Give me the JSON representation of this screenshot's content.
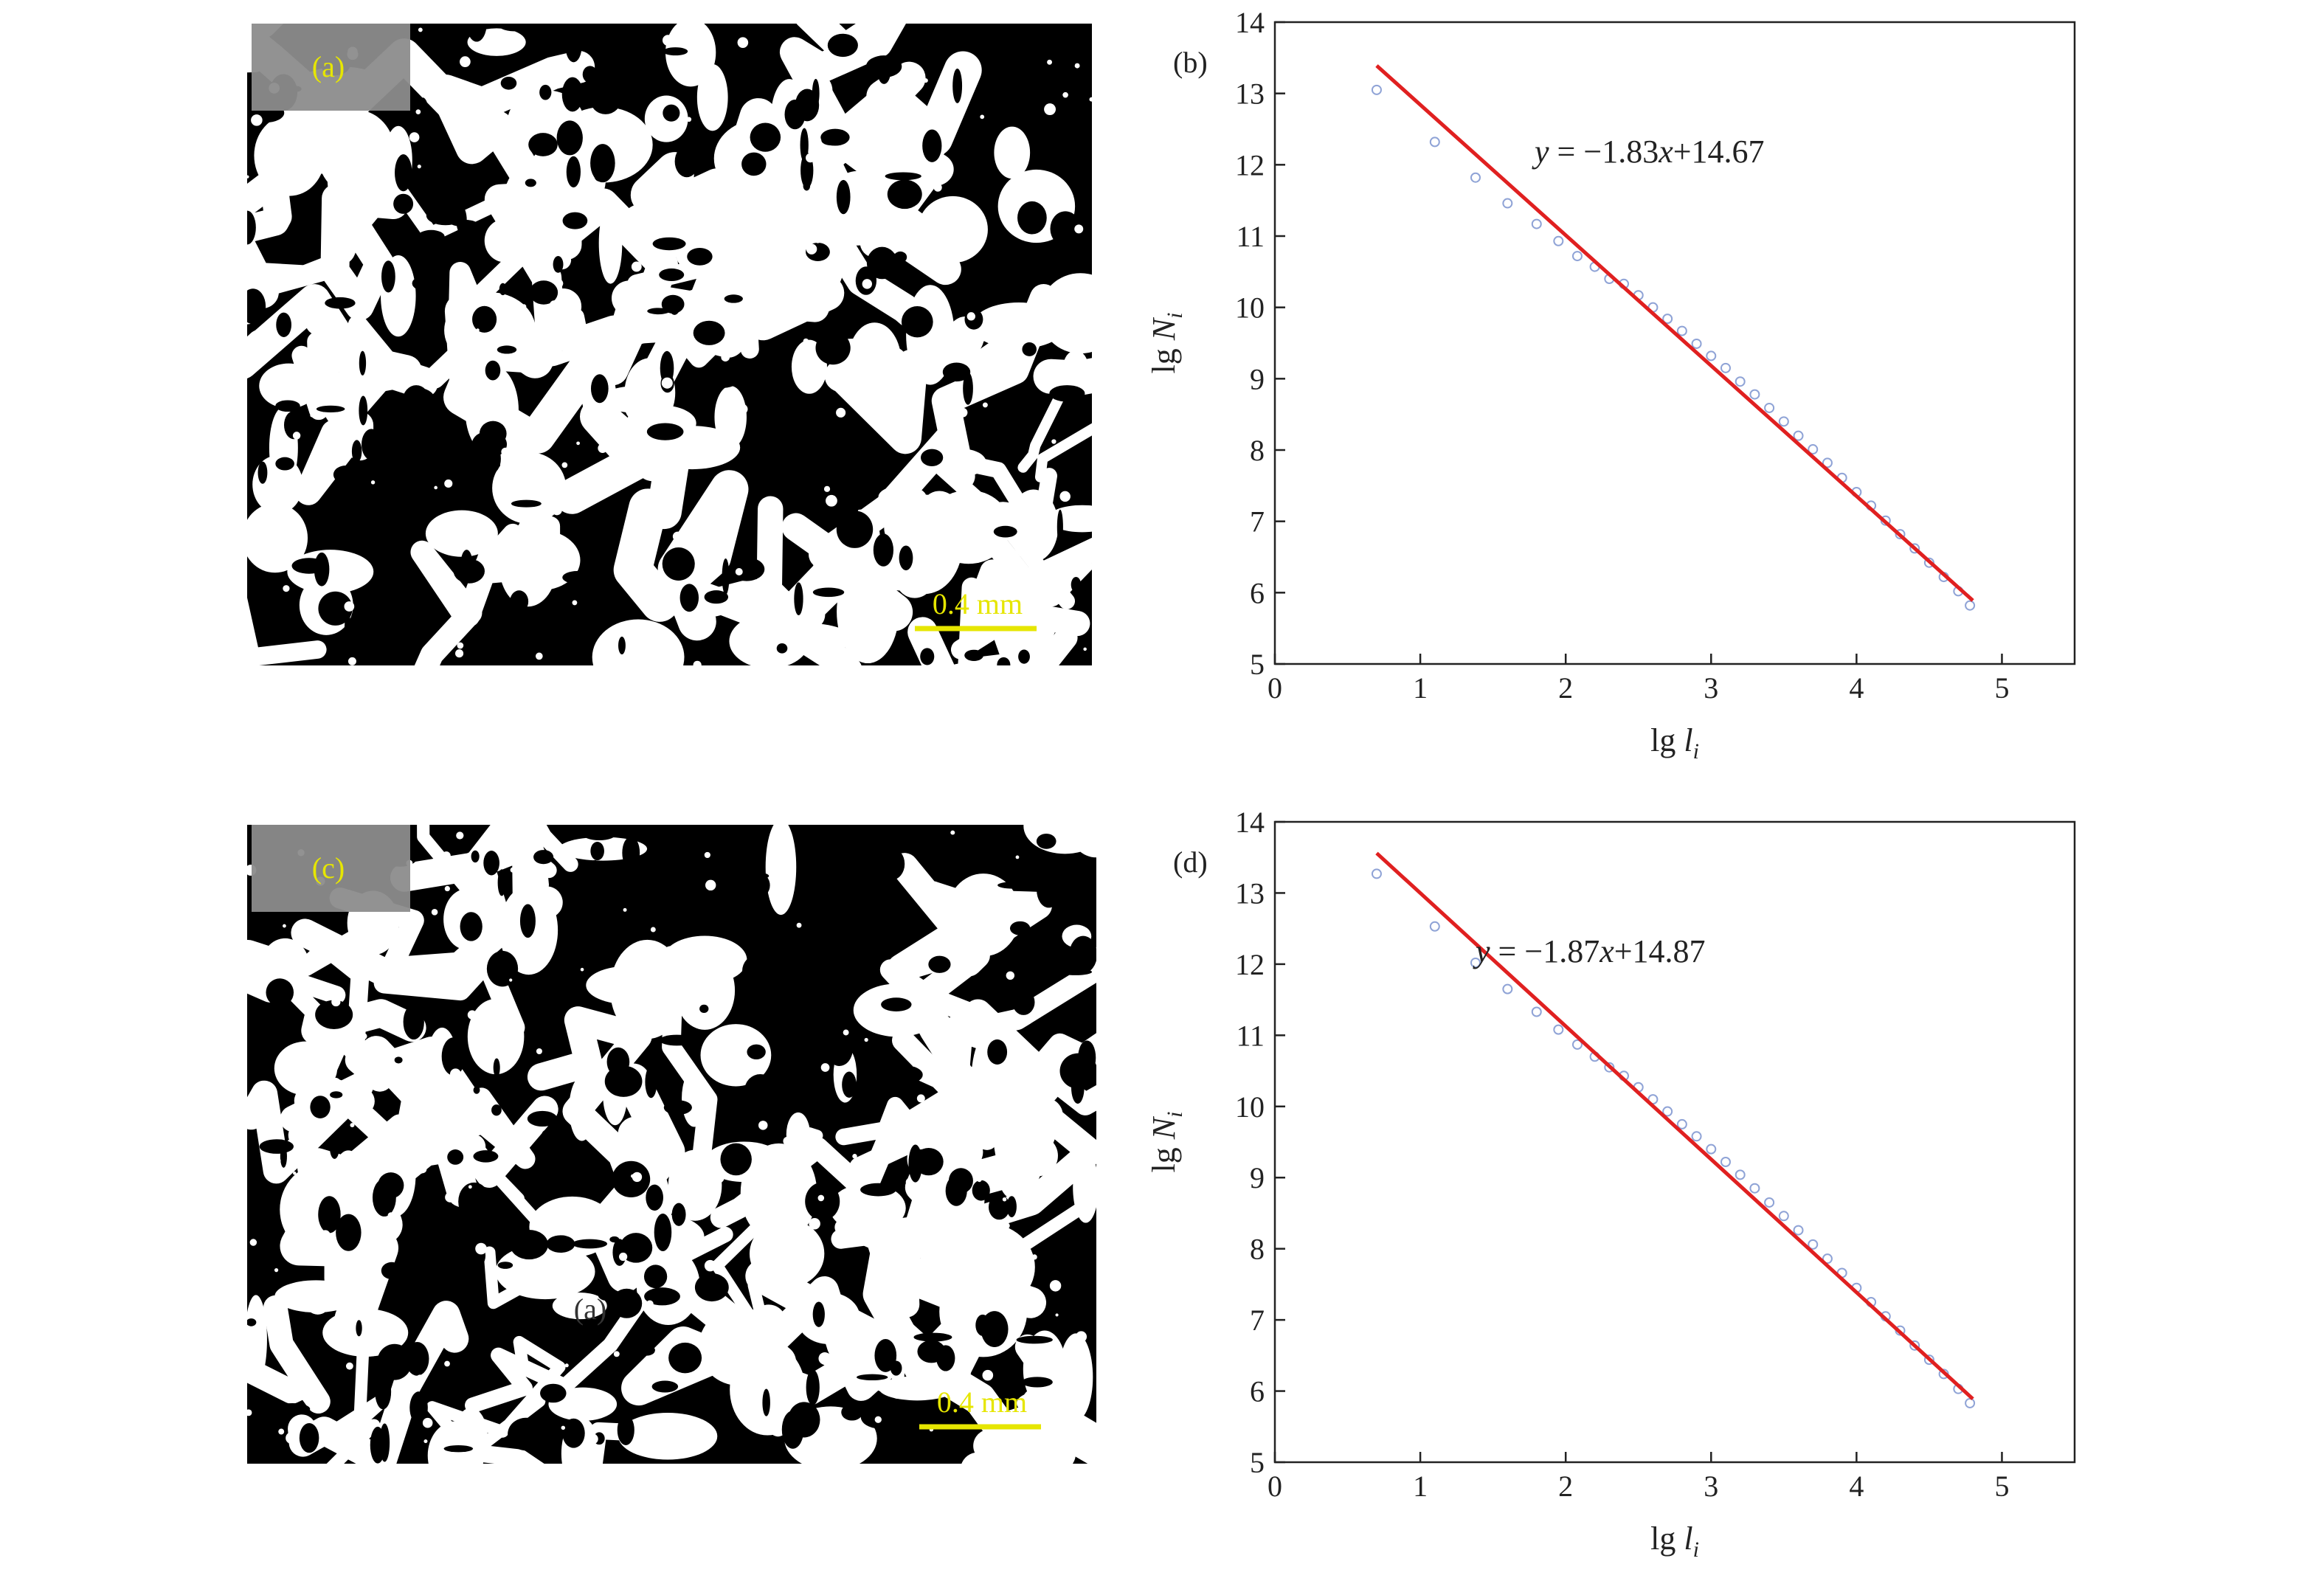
{
  "images": [
    {
      "label": "(a)",
      "scale_bar": "0.4 mm"
    },
    {
      "label": "(c)",
      "scale_bar": "0.4 mm",
      "ghost_label": "(a)"
    }
  ],
  "chart_data": [
    {
      "type": "scatter",
      "panel_label": "(b)",
      "annotation": "y = −1.83x+14.67",
      "xlabel": "lg l",
      "xlabel_sub": "i",
      "ylabel": "lg N",
      "ylabel_sub": "i",
      "xlim": [
        0,
        5.5
      ],
      "ylim": [
        5,
        14
      ],
      "xticks": [
        0,
        1,
        2,
        3,
        4,
        5
      ],
      "yticks": [
        5,
        6,
        7,
        8,
        9,
        10,
        11,
        12,
        13,
        14
      ],
      "series": [
        {
          "mode": "markers",
          "color": "#8fa3d6",
          "x": [
            0.7,
            1.1,
            1.38,
            1.6,
            1.8,
            1.95,
            2.08,
            2.2,
            2.3,
            2.4,
            2.5,
            2.6,
            2.7,
            2.8,
            2.9,
            3.0,
            3.1,
            3.2,
            3.3,
            3.4,
            3.5,
            3.6,
            3.7,
            3.8,
            3.9,
            4.0,
            4.1,
            4.2,
            4.3,
            4.4,
            4.5,
            4.6,
            4.7,
            4.78
          ],
          "values": [
            13.05,
            12.32,
            11.82,
            11.46,
            11.17,
            10.93,
            10.72,
            10.57,
            10.4,
            10.33,
            10.17,
            10.0,
            9.84,
            9.67,
            9.49,
            9.32,
            9.15,
            8.96,
            8.78,
            8.59,
            8.4,
            8.2,
            8.01,
            7.82,
            7.61,
            7.41,
            7.22,
            7.01,
            6.82,
            6.62,
            6.42,
            6.22,
            6.02,
            5.82
          ]
        },
        {
          "mode": "line",
          "color": "#e02020",
          "x": [
            0.7,
            4.8
          ],
          "values": [
            13.39,
            5.89
          ]
        }
      ]
    },
    {
      "type": "scatter",
      "panel_label": "(d)",
      "annotation": "y = −1.87x+14.87",
      "xlabel": "lg l",
      "xlabel_sub": "i",
      "ylabel": "lg N",
      "ylabel_sub": "i",
      "xlim": [
        0,
        5.5
      ],
      "ylim": [
        5,
        14
      ],
      "xticks": [
        0,
        1,
        2,
        3,
        4,
        5
      ],
      "yticks": [
        5,
        6,
        7,
        8,
        9,
        10,
        11,
        12,
        13,
        14
      ],
      "series": [
        {
          "mode": "markers",
          "color": "#8fa3d6",
          "x": [
            0.7,
            1.1,
            1.38,
            1.6,
            1.8,
            1.95,
            2.08,
            2.2,
            2.3,
            2.4,
            2.5,
            2.6,
            2.7,
            2.8,
            2.9,
            3.0,
            3.1,
            3.2,
            3.3,
            3.4,
            3.5,
            3.6,
            3.7,
            3.8,
            3.9,
            4.0,
            4.1,
            4.2,
            4.3,
            4.4,
            4.5,
            4.6,
            4.7,
            4.78
          ],
          "values": [
            13.27,
            12.53,
            12.02,
            11.65,
            11.33,
            11.08,
            10.87,
            10.7,
            10.55,
            10.43,
            10.27,
            10.1,
            9.93,
            9.75,
            9.58,
            9.4,
            9.22,
            9.04,
            8.85,
            8.65,
            8.46,
            8.26,
            8.06,
            7.86,
            7.66,
            7.45,
            7.25,
            7.05,
            6.85,
            6.64,
            6.44,
            6.24,
            6.03,
            5.83
          ]
        },
        {
          "mode": "line",
          "color": "#e02020",
          "x": [
            0.7,
            4.8
          ],
          "values": [
            13.56,
            5.89
          ]
        }
      ]
    }
  ]
}
